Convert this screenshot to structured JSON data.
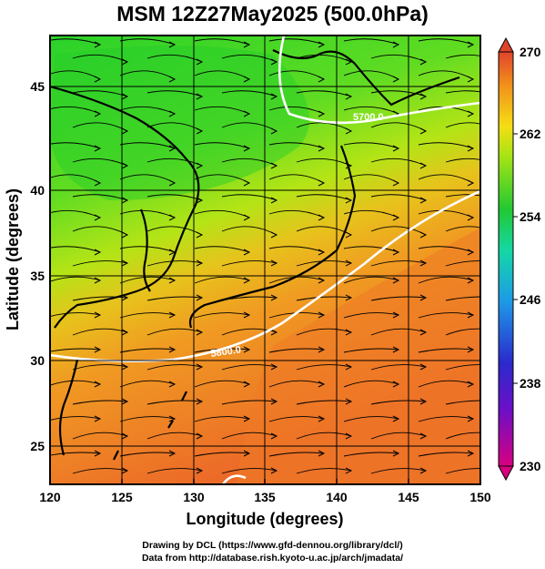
{
  "title": "MSM 12Z27May2025 (500.0hPa)",
  "map": {
    "xlabel": "Longitude (degrees)",
    "ylabel": "Latitude  (degrees)",
    "lon_range": [
      120,
      150
    ],
    "lat_range": [
      22.5,
      47.6
    ],
    "lon_ticks": [
      "120",
      "125",
      "130",
      "135",
      "140",
      "145",
      "150"
    ],
    "lat_ticks": [
      "25",
      "30",
      "35",
      "40",
      "45"
    ],
    "grid": true,
    "contours": [
      {
        "label": "5700.0",
        "color": "#ffffff"
      },
      {
        "label": "5800.0",
        "color": "#ffffff"
      }
    ],
    "field": "temperature (K) shaded, wind streamlines"
  },
  "colorbar": {
    "min": 230,
    "max": 270,
    "labels": [
      "270",
      "262",
      "254",
      "246",
      "238",
      "230"
    ],
    "colors": [
      "#d8007f",
      "#2a2acc",
      "#1e9be8",
      "#14d7a5",
      "#22c832",
      "#a8e414",
      "#f4de14",
      "#f2901c",
      "#e0442c"
    ]
  },
  "footer": {
    "line1": "Drawing by DCL (https://www.gfd-dennou.org/library/dcl/)",
    "line2": "Data from http://database.rish.kyoto-u.ac.jp/arch/jmadata/"
  }
}
